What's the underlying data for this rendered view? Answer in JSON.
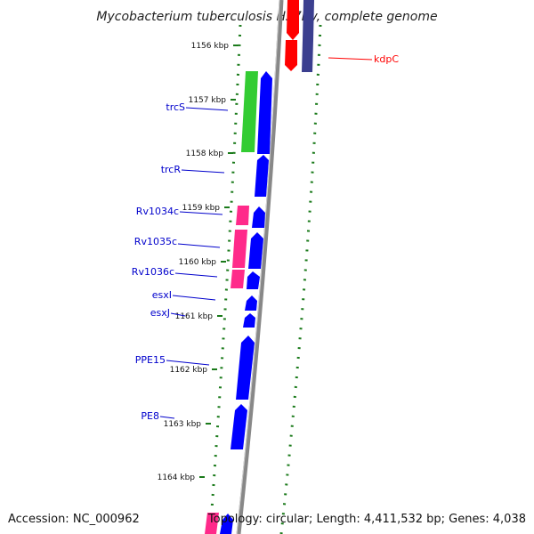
{
  "title": "Mycobacterium tuberculosis H37Rv, complete genome",
  "accession": "Accession: NC_000962",
  "summary": "Topology: circular; Length: 4,411,532 bp; Genes: 4,038",
  "ticks": [
    "1156 kbp",
    "1157 kbp",
    "1158 kbp",
    "1159 kbp",
    "1160 kbp",
    "1161 kbp",
    "1162 kbp",
    "1163 kbp",
    "1164 kbp"
  ],
  "genes": [
    {
      "name": "kdpC",
      "color": "#ff0000"
    },
    {
      "name": "trcS",
      "color": "#0000cc"
    },
    {
      "name": "trcR",
      "color": "#0000cc"
    },
    {
      "name": "Rv1034c",
      "color": "#0000cc"
    },
    {
      "name": "Rv1035c",
      "color": "#0000cc"
    },
    {
      "name": "Rv1036c",
      "color": "#0000cc"
    },
    {
      "name": "esxI",
      "color": "#0000cc"
    },
    {
      "name": "esxJ",
      "color": "#0000cc"
    },
    {
      "name": "PPE15",
      "color": "#0000cc"
    },
    {
      "name": "PE8",
      "color": "#0000cc"
    }
  ],
  "colors": {
    "cds_forward": "#0000ff",
    "cds_alt": "#ff2a8a",
    "cds_green": "#33cc33",
    "cds_red": "#ff0000",
    "cds_navy": "#3b3f8f",
    "backbone": "#888888",
    "tick_marks": "#1a7a1a"
  }
}
